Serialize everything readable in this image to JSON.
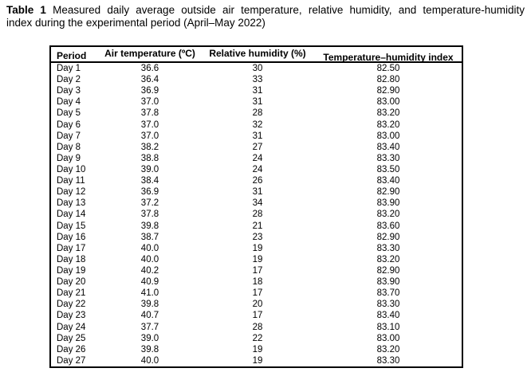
{
  "caption": {
    "label": "Table 1",
    "line1_rest": "Measured daily average outside air temperature, relative humidity, and temperature-humidity",
    "line2": "index during the experimental period (April–May 2022)"
  },
  "table": {
    "columns": [
      "Period",
      "Air temperature (ºC)",
      "Relative humidity (%)",
      "Temperature–humidity index"
    ],
    "rows": [
      {
        "period": "Day 1",
        "air_temperature": "36.6",
        "relative_humidity": "30",
        "thi": "82.50"
      },
      {
        "period": "Day 2",
        "air_temperature": "36.4",
        "relative_humidity": "33",
        "thi": "82.80"
      },
      {
        "period": "Day 3",
        "air_temperature": "36.9",
        "relative_humidity": "31",
        "thi": "82.90"
      },
      {
        "period": "Day 4",
        "air_temperature": "37.0",
        "relative_humidity": "31",
        "thi": "83.00"
      },
      {
        "period": "Day 5",
        "air_temperature": "37.8",
        "relative_humidity": "28",
        "thi": "83.20"
      },
      {
        "period": "Day 6",
        "air_temperature": "37.0",
        "relative_humidity": "32",
        "thi": "83.20"
      },
      {
        "period": "Day 7",
        "air_temperature": "37.0",
        "relative_humidity": "31",
        "thi": "83.00"
      },
      {
        "period": "Day 8",
        "air_temperature": "38.2",
        "relative_humidity": "27",
        "thi": "83.40"
      },
      {
        "period": "Day 9",
        "air_temperature": "38.8",
        "relative_humidity": "24",
        "thi": "83.30"
      },
      {
        "period": "Day 10",
        "air_temperature": "39.0",
        "relative_humidity": "24",
        "thi": "83.50"
      },
      {
        "period": "Day 11",
        "air_temperature": "38.4",
        "relative_humidity": "26",
        "thi": "83.40"
      },
      {
        "period": "Day 12",
        "air_temperature": "36.9",
        "relative_humidity": "31",
        "thi": "82.90"
      },
      {
        "period": "Day 13",
        "air_temperature": "37.2",
        "relative_humidity": "34",
        "thi": "83.90"
      },
      {
        "period": "Day 14",
        "air_temperature": "37.8",
        "relative_humidity": "28",
        "thi": "83.20"
      },
      {
        "period": "Day 15",
        "air_temperature": "39.8",
        "relative_humidity": "21",
        "thi": "83.60"
      },
      {
        "period": "Day 16",
        "air_temperature": "38.7",
        "relative_humidity": "23",
        "thi": "82.90"
      },
      {
        "period": "Day 17",
        "air_temperature": "40.0",
        "relative_humidity": "19",
        "thi": "83.30"
      },
      {
        "period": "Day 18",
        "air_temperature": "40.0",
        "relative_humidity": "19",
        "thi": "83.20"
      },
      {
        "period": "Day 19",
        "air_temperature": "40.2",
        "relative_humidity": "17",
        "thi": "82.90"
      },
      {
        "period": "Day 20",
        "air_temperature": "40.9",
        "relative_humidity": "18",
        "thi": "83.90"
      },
      {
        "period": "Day 21",
        "air_temperature": "41.0",
        "relative_humidity": "17",
        "thi": "83.70"
      },
      {
        "period": "Day 22",
        "air_temperature": "39.8",
        "relative_humidity": "20",
        "thi": "83.30"
      },
      {
        "period": "Day 23",
        "air_temperature": "40.7",
        "relative_humidity": "17",
        "thi": "83.40"
      },
      {
        "period": "Day 24",
        "air_temperature": "37.7",
        "relative_humidity": "28",
        "thi": "83.10"
      },
      {
        "period": "Day 25",
        "air_temperature": "39.0",
        "relative_humidity": "22",
        "thi": "83.00"
      },
      {
        "period": "Day 26",
        "air_temperature": "39.8",
        "relative_humidity": "19",
        "thi": "83.20"
      },
      {
        "period": "Day 27",
        "air_temperature": "40.0",
        "relative_humidity": "19",
        "thi": "83.30"
      }
    ]
  },
  "colors": {
    "text": "#000000",
    "border": "#000000",
    "background": "#ffffff"
  }
}
